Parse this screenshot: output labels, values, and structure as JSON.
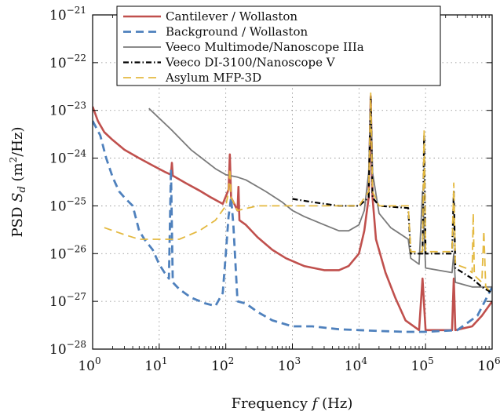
{
  "chart_data": {
    "type": "line",
    "xscale": "log",
    "yscale": "log",
    "xlim": [
      1,
      1000000
    ],
    "ylim": [
      1e-28,
      1e-21
    ],
    "grid": true,
    "legend_position": "top-left",
    "xlabel": {
      "prefix": "Frequency ",
      "var": "f",
      "suffix": " (Hz)"
    },
    "ylabel": {
      "prefix": "PSD ",
      "var": "S",
      "sub": "d",
      "paren": " (m",
      "exp": "2",
      "tail": "/Hz)"
    },
    "xtick_exponents": [
      "0",
      "1",
      "2",
      "3",
      "4",
      "5",
      "6"
    ],
    "ytick_exponents": [
      "−28",
      "−27",
      "−26",
      "−25",
      "−24",
      "−23",
      "−22",
      "−21"
    ],
    "tick_base": "10",
    "series": [
      {
        "name": "Cantilever / Wollaston",
        "color": "#c0504d",
        "dash": "solid",
        "points": [
          [
            1,
            1.2e-23
          ],
          [
            1.2,
            6e-24
          ],
          [
            1.5,
            3.5e-24
          ],
          [
            2,
            2.4e-24
          ],
          [
            3,
            1.5e-24
          ],
          [
            5,
            1e-24
          ],
          [
            8,
            7e-25
          ],
          [
            12,
            5.2e-25
          ],
          [
            15,
            4.5e-25
          ],
          [
            15.5,
            8e-25
          ],
          [
            16,
            4.3e-25
          ],
          [
            25,
            3e-25
          ],
          [
            40,
            2.1e-25
          ],
          [
            60,
            1.5e-25
          ],
          [
            90,
            1.1e-25
          ],
          [
            110,
            2.2e-25
          ],
          [
            115,
            1.2e-24
          ],
          [
            120,
            1.5e-25
          ],
          [
            150,
            8e-26
          ],
          [
            155,
            2.5e-25
          ],
          [
            160,
            5e-26
          ],
          [
            200,
            4e-26
          ],
          [
            300,
            2.2e-26
          ],
          [
            500,
            1.2e-26
          ],
          [
            800,
            8e-27
          ],
          [
            1500,
            5.5e-27
          ],
          [
            3000,
            4.5e-27
          ],
          [
            5000,
            4.5e-27
          ],
          [
            7000,
            5.5e-27
          ],
          [
            10000,
            1e-26
          ],
          [
            12000,
            3e-26
          ],
          [
            14000,
            1.5e-25
          ],
          [
            15000,
            2e-23
          ],
          [
            16000,
            1.5e-25
          ],
          [
            18000,
            2e-26
          ],
          [
            25000,
            4e-27
          ],
          [
            35000,
            1.2e-27
          ],
          [
            50000,
            4e-28
          ],
          [
            80000,
            2.5e-28
          ],
          [
            90000,
            3e-27
          ],
          [
            100000,
            2.5e-28
          ],
          [
            250000,
            2.5e-28
          ],
          [
            265000,
            3e-27
          ],
          [
            280000,
            2.5e-28
          ],
          [
            500000,
            3e-28
          ],
          [
            700000,
            5e-28
          ],
          [
            1000000,
            1e-27
          ]
        ]
      },
      {
        "name": "Background / Wollaston",
        "color": "#4f81bd",
        "dash": "dashed",
        "points": [
          [
            1,
            6e-24
          ],
          [
            1.3,
            3e-24
          ],
          [
            1.6,
            1e-24
          ],
          [
            2,
            4e-25
          ],
          [
            2.5,
            2e-25
          ],
          [
            3,
            1.5e-25
          ],
          [
            4,
            1e-25
          ],
          [
            5,
            3e-26
          ],
          [
            6,
            2e-26
          ],
          [
            8,
            1.2e-26
          ],
          [
            10,
            6e-27
          ],
          [
            12,
            4e-27
          ],
          [
            14,
            3e-27
          ],
          [
            15,
            6e-25
          ],
          [
            16,
            2.5e-27
          ],
          [
            20,
            1.8e-27
          ],
          [
            30,
            1.2e-27
          ],
          [
            50,
            9e-28
          ],
          [
            70,
            8e-28
          ],
          [
            90,
            1.5e-27
          ],
          [
            100,
            1e-26
          ],
          [
            110,
            6e-26
          ],
          [
            120,
            1.5e-25
          ],
          [
            130,
            4e-26
          ],
          [
            150,
            1e-27
          ],
          [
            200,
            9e-28
          ],
          [
            300,
            6e-28
          ],
          [
            500,
            4e-28
          ],
          [
            1000,
            3e-28
          ],
          [
            2000,
            3e-28
          ],
          [
            5000,
            2.6e-28
          ],
          [
            10000,
            2.5e-28
          ],
          [
            20000,
            2.4e-28
          ],
          [
            50000,
            2.3e-28
          ],
          [
            100000,
            2.3e-28
          ],
          [
            300000,
            2.5e-28
          ],
          [
            600000,
            5e-28
          ],
          [
            1000000,
            2e-27
          ]
        ]
      },
      {
        "name": "Veeco Multimode/Nanoscope IIIa",
        "color": "#7a7a7a",
        "dash": "solid",
        "points": [
          [
            7,
            1.1e-23
          ],
          [
            15,
            4e-24
          ],
          [
            30,
            1.5e-24
          ],
          [
            70,
            6e-25
          ],
          [
            100,
            4.5e-25
          ],
          [
            150,
            4e-25
          ],
          [
            200,
            3.5e-25
          ],
          [
            400,
            2e-25
          ],
          [
            700,
            1.2e-25
          ],
          [
            1000,
            8e-26
          ],
          [
            1500,
            6e-26
          ],
          [
            3000,
            4e-26
          ],
          [
            5000,
            3e-26
          ],
          [
            7000,
            3e-26
          ],
          [
            10000,
            4e-26
          ],
          [
            12000,
            8e-26
          ],
          [
            14000,
            5e-25
          ],
          [
            15000,
            2e-23
          ],
          [
            16000,
            5e-25
          ],
          [
            20000,
            7e-26
          ],
          [
            30000,
            3.5e-26
          ],
          [
            55000,
            2e-26
          ],
          [
            60000,
            8e-27
          ],
          [
            80000,
            6e-27
          ],
          [
            90000,
            2e-25
          ],
          [
            100000,
            5e-27
          ],
          [
            250000,
            4e-27
          ],
          [
            265000,
            1e-26
          ],
          [
            280000,
            2.5e-27
          ],
          [
            500000,
            2e-27
          ],
          [
            700000,
            2e-27
          ],
          [
            1000000,
            2e-27
          ]
        ]
      },
      {
        "name": "Veeco DI-3100/Nanoscope V",
        "color": "#000000",
        "dash": "dashdot",
        "points": [
          [
            1000,
            1.4e-25
          ],
          [
            2000,
            1.2e-25
          ],
          [
            5000,
            1e-25
          ],
          [
            10000,
            1e-25
          ],
          [
            14000,
            1.5e-25
          ],
          [
            15000,
            2e-23
          ],
          [
            16000,
            1.5e-25
          ],
          [
            20000,
            1e-25
          ],
          [
            55000,
            9e-26
          ],
          [
            60000,
            1e-26
          ],
          [
            90000,
            1e-26
          ],
          [
            95000,
            3e-24
          ],
          [
            100000,
            1e-26
          ],
          [
            150000,
            1e-26
          ],
          [
            250000,
            1e-26
          ],
          [
            265000,
            2e-25
          ],
          [
            280000,
            5e-27
          ],
          [
            500000,
            3e-27
          ],
          [
            700000,
            2e-27
          ],
          [
            1000000,
            1.5e-27
          ]
        ]
      },
      {
        "name": "Asylum MFP-3D",
        "color": "#e4b940",
        "dash": "dashed",
        "points": [
          [
            1.5,
            3.5e-26
          ],
          [
            3,
            2.5e-26
          ],
          [
            5,
            2e-26
          ],
          [
            10,
            2e-26
          ],
          [
            20,
            2e-26
          ],
          [
            40,
            3e-26
          ],
          [
            70,
            5e-26
          ],
          [
            100,
            1e-25
          ],
          [
            110,
            2e-25
          ],
          [
            115,
            6e-25
          ],
          [
            120,
            1.5e-25
          ],
          [
            150,
            8e-26
          ],
          [
            300,
            1e-25
          ],
          [
            1000,
            1e-25
          ],
          [
            5000,
            1e-25
          ],
          [
            10000,
            1e-25
          ],
          [
            14000,
            2e-25
          ],
          [
            15000,
            2.3e-23
          ],
          [
            16000,
            2e-25
          ],
          [
            20000,
            1e-25
          ],
          [
            55000,
            1e-25
          ],
          [
            60000,
            1.1e-26
          ],
          [
            90000,
            1.1e-26
          ],
          [
            95000,
            4e-24
          ],
          [
            100000,
            1.1e-26
          ],
          [
            150000,
            1.1e-26
          ],
          [
            250000,
            1.1e-26
          ],
          [
            265000,
            3e-25
          ],
          [
            280000,
            6e-27
          ],
          [
            400000,
            5e-27
          ],
          [
            500000,
            4e-27
          ],
          [
            520000,
            7e-26
          ],
          [
            540000,
            3.5e-27
          ],
          [
            700000,
            2.5e-27
          ],
          [
            750000,
            3e-26
          ],
          [
            800000,
            2e-27
          ],
          [
            1000000,
            1.5e-27
          ]
        ]
      }
    ]
  }
}
